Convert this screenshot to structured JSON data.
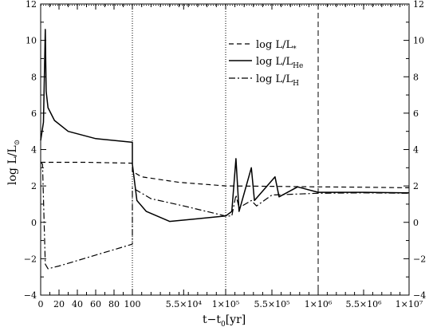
{
  "chart_data": {
    "type": "line",
    "title": "",
    "xlabel": "t−t₀[yr]",
    "ylabel": "log L/L⊙",
    "ylim": [
      -4,
      12
    ],
    "y_ticks": [
      "−4",
      "−2",
      "0",
      "2",
      "4",
      "6",
      "8",
      "10",
      "12"
    ],
    "x_axis_segments": [
      {
        "range": [
          0,
          100
        ],
        "ticks": [
          "0",
          "20",
          "40",
          "60",
          "80",
          "100"
        ],
        "scale": "linear"
      },
      {
        "range": [
          100,
          100000
        ],
        "ticks": [
          "5.5×10⁴",
          "1×10⁵"
        ],
        "tick_values": [
          55000,
          100000
        ],
        "scale": "linear"
      },
      {
        "range": [
          100000,
          1000000
        ],
        "ticks": [
          "5.5×10⁵",
          "1×10⁶"
        ],
        "tick_values": [
          550000,
          1000000
        ],
        "scale": "linear"
      },
      {
        "range": [
          1000000,
          10000000
        ],
        "ticks": [
          "5.5×10⁶",
          "1×10⁷"
        ],
        "tick_values": [
          5500000,
          10000000
        ],
        "scale": "linear"
      }
    ],
    "grid": false,
    "legend_position": "top-right",
    "series": [
      {
        "name": "log L/L*",
        "dash": "dashed",
        "points": [
          [
            0,
            3.3
          ],
          [
            50,
            3.3
          ],
          [
            100,
            3.25
          ],
          [
            100,
            2.8
          ],
          [
            10000,
            2.5
          ],
          [
            50000,
            2.2
          ],
          [
            100000,
            2.0
          ],
          [
            550000,
            1.98
          ],
          [
            1000000,
            1.95
          ],
          [
            5500000,
            1.93
          ],
          [
            10000000,
            1.9
          ]
        ]
      },
      {
        "name": "log L/L_He",
        "dash": "solid",
        "points": [
          [
            0,
            4.5
          ],
          [
            3,
            5.5
          ],
          [
            5,
            10.6
          ],
          [
            6,
            7.2
          ],
          [
            8,
            6.3
          ],
          [
            15,
            5.6
          ],
          [
            30,
            5.0
          ],
          [
            60,
            4.6
          ],
          [
            100,
            4.4
          ],
          [
            100,
            3.2
          ],
          [
            5000,
            1.2
          ],
          [
            15000,
            0.6
          ],
          [
            40000,
            0.05
          ],
          [
            70000,
            0.2
          ],
          [
            100000,
            0.35
          ],
          [
            160000,
            0.6
          ],
          [
            200000,
            3.5
          ],
          [
            230000,
            0.6
          ],
          [
            350000,
            3.0
          ],
          [
            380000,
            1.2
          ],
          [
            580000,
            2.5
          ],
          [
            620000,
            1.4
          ],
          [
            800000,
            1.95
          ],
          [
            1000000,
            1.65
          ],
          [
            5500000,
            1.65
          ],
          [
            10000000,
            1.62
          ]
        ]
      },
      {
        "name": "log L/L_H",
        "dash": "dashdot",
        "points": [
          [
            0,
            3.3
          ],
          [
            2,
            3.2
          ],
          [
            5,
            -2.3
          ],
          [
            8,
            -2.55
          ],
          [
            20,
            -2.4
          ],
          [
            40,
            -2.1
          ],
          [
            60,
            -1.8
          ],
          [
            80,
            -1.5
          ],
          [
            100,
            -1.2
          ],
          [
            100,
            1.9
          ],
          [
            20000,
            1.3
          ],
          [
            55000,
            0.9
          ],
          [
            100000,
            0.35
          ],
          [
            160000,
            0.35
          ],
          [
            200000,
            1.5
          ],
          [
            230000,
            0.8
          ],
          [
            350000,
            1.2
          ],
          [
            400000,
            0.9
          ],
          [
            550000,
            1.5
          ],
          [
            1000000,
            1.6
          ],
          [
            5500000,
            1.62
          ],
          [
            10000000,
            1.6
          ]
        ]
      }
    ],
    "segment_dividers": [
      {
        "x": 100,
        "style": "dotted"
      },
      {
        "x": 100000,
        "style": "dotted"
      },
      {
        "x": 1000000,
        "style": "dashed"
      }
    ]
  },
  "legend": {
    "items": [
      {
        "main": "log  L/L",
        "sub": "*"
      },
      {
        "main": "log  L/L",
        "sub": "He"
      },
      {
        "main": "log  L/L",
        "sub": "H"
      }
    ]
  },
  "axes": {
    "xlabel_main": "t−t",
    "xlabel_sub": "0",
    "xlabel_tail": "[yr]",
    "ylabel_main": "log L/L",
    "ylabel_sub": "⊙"
  }
}
